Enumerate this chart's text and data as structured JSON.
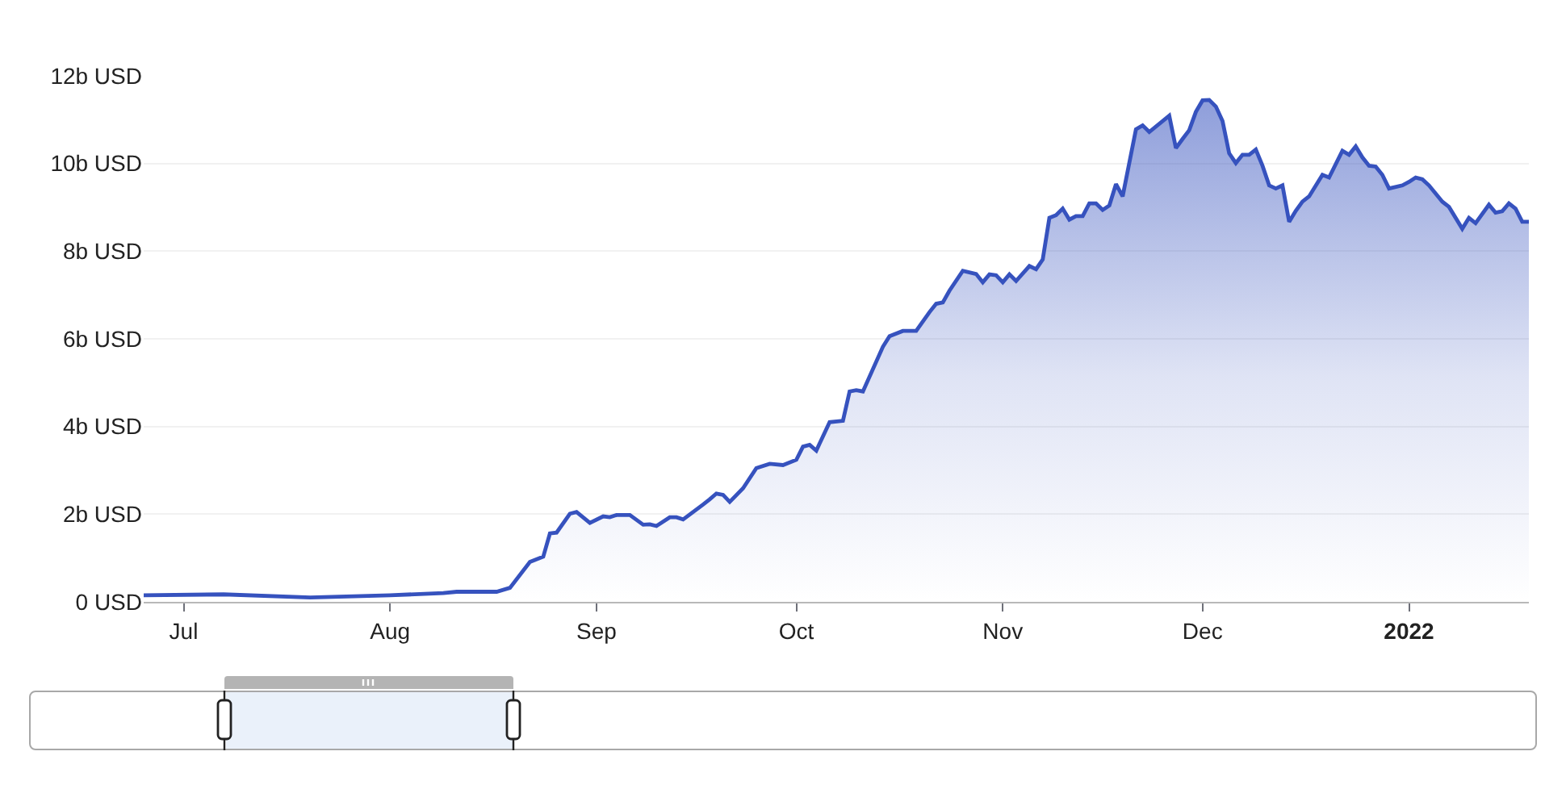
{
  "chart_data": {
    "type": "area",
    "x": [
      "2021-06-25",
      "2021-07-07",
      "2021-07-20",
      "2021-08-01",
      "2021-08-09",
      "2021-08-11",
      "2021-08-17",
      "2021-08-19",
      "2021-08-22",
      "2021-08-24",
      "2021-08-25",
      "2021-08-26",
      "2021-08-28",
      "2021-08-29",
      "2021-08-31",
      "2021-09-02",
      "2021-09-03",
      "2021-09-04",
      "2021-09-06",
      "2021-09-08",
      "2021-09-09",
      "2021-09-10",
      "2021-09-12",
      "2021-09-13",
      "2021-09-14",
      "2021-09-17",
      "2021-09-18",
      "2021-09-19",
      "2021-09-20",
      "2021-09-21",
      "2021-09-23",
      "2021-09-25",
      "2021-09-27",
      "2021-09-29",
      "2021-10-01",
      "2021-10-02",
      "2021-10-03",
      "2021-10-04",
      "2021-10-06",
      "2021-10-08",
      "2021-10-09",
      "2021-10-10",
      "2021-10-11",
      "2021-10-14",
      "2021-10-15",
      "2021-10-17",
      "2021-10-19",
      "2021-10-21",
      "2021-10-22",
      "2021-10-23",
      "2021-10-24",
      "2021-10-26",
      "2021-10-28",
      "2021-10-29",
      "2021-10-30",
      "2021-10-31",
      "2021-11-01",
      "2021-11-02",
      "2021-11-03",
      "2021-11-05",
      "2021-11-06",
      "2021-11-07",
      "2021-11-08",
      "2021-11-09",
      "2021-11-10",
      "2021-11-11",
      "2021-11-12",
      "2021-11-13",
      "2021-11-14",
      "2021-11-15",
      "2021-11-16",
      "2021-11-17",
      "2021-11-18",
      "2021-11-19",
      "2021-11-21",
      "2021-11-22",
      "2021-11-23",
      "2021-11-26",
      "2021-11-27",
      "2021-11-28",
      "2021-11-29",
      "2021-11-30",
      "2021-12-01",
      "2021-12-02",
      "2021-12-03",
      "2021-12-04",
      "2021-12-05",
      "2021-12-06",
      "2021-12-07",
      "2021-12-08",
      "2021-12-09",
      "2021-12-10",
      "2021-12-11",
      "2021-12-12",
      "2021-12-13",
      "2021-12-14",
      "2021-12-15",
      "2021-12-16",
      "2021-12-17",
      "2021-12-19",
      "2021-12-20",
      "2021-12-22",
      "2021-12-23",
      "2021-12-24",
      "2021-12-25",
      "2021-12-26",
      "2021-12-27",
      "2021-12-28",
      "2021-12-29",
      "2021-12-31",
      "2022-01-01",
      "2022-01-02",
      "2022-01-03",
      "2022-01-04",
      "2022-01-06",
      "2022-01-07",
      "2022-01-09",
      "2022-01-10",
      "2022-01-11",
      "2022-01-13",
      "2022-01-14",
      "2022-01-15",
      "2022-01-16",
      "2022-01-17",
      "2022-01-18",
      "2022-01-19"
    ],
    "series": [
      {
        "color": "#3652be",
        "values": [
          0.15,
          0.17,
          0.1,
          0.15,
          0.2,
          0.23,
          0.23,
          0.32,
          0.91,
          1.03,
          1.56,
          1.58,
          2.01,
          2.05,
          1.8,
          1.95,
          1.93,
          1.98,
          1.98,
          1.76,
          1.77,
          1.73,
          1.93,
          1.93,
          1.88,
          2.22,
          2.34,
          2.47,
          2.44,
          2.28,
          2.59,
          3.05,
          3.15,
          3.12,
          3.24,
          3.54,
          3.58,
          3.45,
          4.1,
          4.13,
          4.8,
          4.83,
          4.8,
          5.82,
          6.06,
          6.18,
          6.18,
          6.61,
          6.8,
          6.83,
          7.1,
          7.55,
          7.48,
          7.29,
          7.47,
          7.45,
          7.29,
          7.47,
          7.32,
          7.66,
          7.59,
          7.81,
          8.76,
          8.82,
          8.97,
          8.72,
          8.8,
          8.8,
          9.09,
          9.09,
          8.94,
          9.04,
          9.53,
          9.25,
          10.78,
          10.87,
          10.72,
          11.09,
          10.35,
          10.56,
          10.76,
          11.18,
          11.44,
          11.45,
          11.3,
          10.97,
          10.23,
          10.01,
          10.2,
          10.2,
          10.32,
          9.95,
          9.5,
          9.43,
          9.5,
          8.67,
          8.92,
          9.13,
          9.25,
          9.74,
          9.68,
          10.29,
          10.2,
          10.39,
          10.14,
          9.95,
          9.93,
          9.74,
          9.43,
          9.5,
          9.58,
          9.68,
          9.64,
          9.5,
          9.13,
          9.01,
          8.51,
          8.76,
          8.64,
          9.06,
          8.88,
          8.91,
          9.09,
          8.97,
          8.67,
          8.67
        ]
      }
    ],
    "xlim": [
      "2021-06-25",
      "2022-01-19"
    ],
    "xticks": [
      {
        "value": "2021-07-01",
        "label": "Jul"
      },
      {
        "value": "2021-08-01",
        "label": "Aug"
      },
      {
        "value": "2021-09-01",
        "label": "Sep"
      },
      {
        "value": "2021-10-01",
        "label": "Oct"
      },
      {
        "value": "2021-11-01",
        "label": "Nov"
      },
      {
        "value": "2021-12-01",
        "label": "Dec"
      },
      {
        "value": "2022-01-01",
        "label": "2022"
      }
    ],
    "ylim": [
      0,
      12
    ],
    "yticks": [
      {
        "value": 0,
        "label": "0 USD"
      },
      {
        "value": 2,
        "label": "2b USD"
      },
      {
        "value": 4,
        "label": "4b USD"
      },
      {
        "value": 6,
        "label": "6b USD"
      },
      {
        "value": 8,
        "label": "8b USD"
      },
      {
        "value": 10,
        "label": "10b USD"
      },
      {
        "value": 12,
        "label": "12b USD"
      }
    ],
    "grid": "y"
  }
}
